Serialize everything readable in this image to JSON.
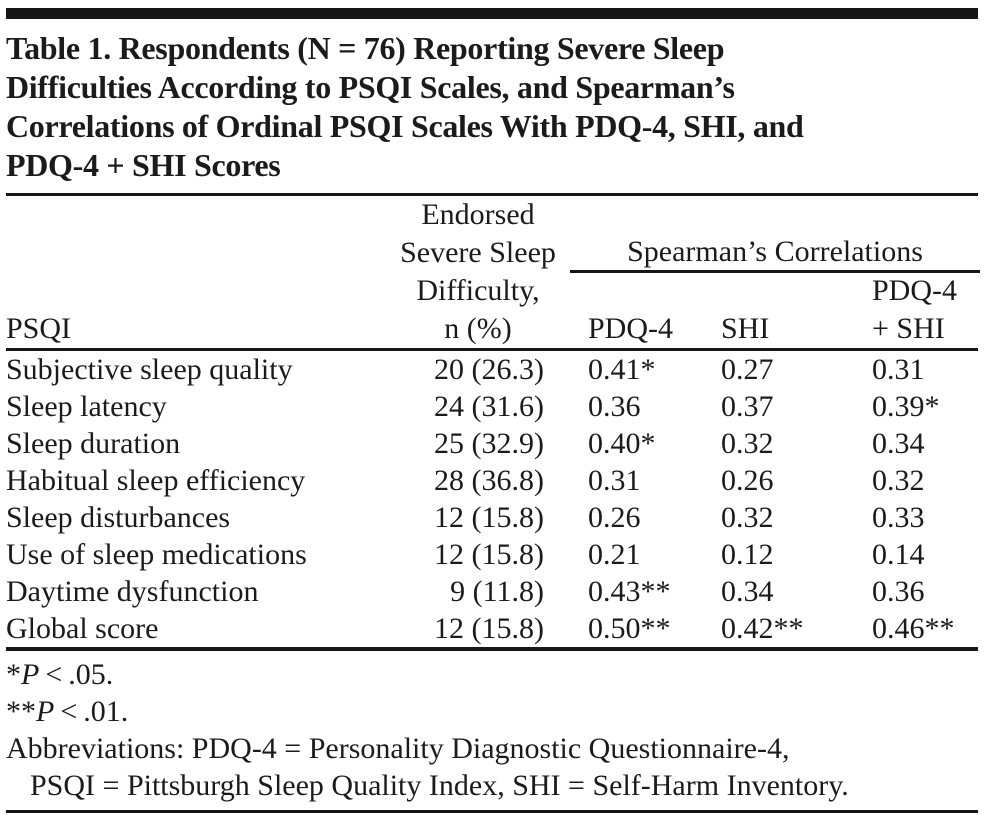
{
  "colors": {
    "ink": "#1b1b1b",
    "rule": "#161616",
    "background": "#ffffff"
  },
  "page": {
    "title_lines": [
      "Table 1. Respondents (N = 76) Reporting Severe Sleep",
      "Difficulties According to PSQI Scales, and Spearman’s",
      "Correlations of Ordinal PSQI Scales With PDQ-4, SHI, and",
      "PDQ-4 + SHI Scores"
    ]
  },
  "table": {
    "psqi_header": "PSQI",
    "n_header_lines": [
      "Endorsed",
      "Severe Sleep",
      "Difficulty,",
      "n (%)"
    ],
    "spanner_label": "Spearman’s Correlations",
    "pdq4_header": "PDQ-4",
    "shi_header": "SHI",
    "combo_header_line1": "PDQ-4",
    "combo_header_line2": "+ SHI",
    "rows": [
      {
        "label": "Subjective sleep quality",
        "n": "20 (26.3)",
        "pdq4": "0.41*",
        "shi": "0.27",
        "combo": "0.31"
      },
      {
        "label": "Sleep latency",
        "n": "24 (31.6)",
        "pdq4": "0.36",
        "shi": "0.37",
        "combo": "0.39*"
      },
      {
        "label": "Sleep duration",
        "n": "25 (32.9)",
        "pdq4": "0.40*",
        "shi": "0.32",
        "combo": "0.34"
      },
      {
        "label": "Habitual sleep efficiency",
        "n": "28 (36.8)",
        "pdq4": "0.31",
        "shi": "0.26",
        "combo": "0.32"
      },
      {
        "label": "Sleep disturbances",
        "n": "12 (15.8)",
        "pdq4": "0.26",
        "shi": "0.32",
        "combo": "0.33"
      },
      {
        "label": "Use of sleep medications",
        "n": "12 (15.8)",
        "pdq4": "0.21",
        "shi": "0.12",
        "combo": "0.14"
      },
      {
        "label": "Daytime dysfunction",
        "n": "9 (11.8)",
        "pdq4": "0.43**",
        "shi": "0.34",
        "combo": "0.36"
      },
      {
        "label": "Global score",
        "n": "12 (15.8)",
        "pdq4": "0.50**",
        "shi": "0.42**",
        "combo": "0.46**"
      }
    ]
  },
  "footnotes": {
    "sig1_star": "*",
    "sig1_p": "P",
    "sig1_rest": " < .05.",
    "sig2_star": "**",
    "sig2_p": "P",
    "sig2_rest": " < .01.",
    "abbrev_line1": "Abbreviations: PDQ-4 = Personality Diagnostic Questionnaire-4,",
    "abbrev_line2": "PSQI = Pittsburgh Sleep Quality Index, SHI = Self-Harm Inventory."
  }
}
